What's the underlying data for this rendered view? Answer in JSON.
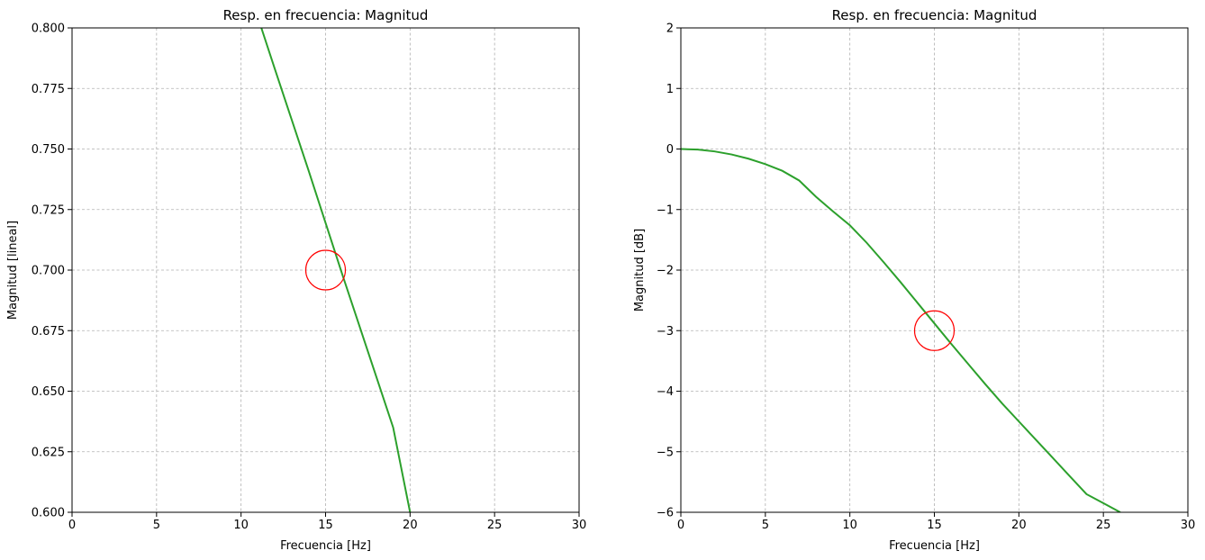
{
  "chart_data": [
    {
      "type": "line",
      "title": "Resp. en frecuencia: Magnitud",
      "xlabel": "Frecuencia [Hz]",
      "ylabel": "Magnitud [lineal]",
      "xlim": [
        0,
        30
      ],
      "ylim": [
        0.6,
        0.8
      ],
      "x_ticks": [
        0,
        5,
        10,
        15,
        20,
        25,
        30
      ],
      "x_tick_labels": [
        "0",
        "5",
        "10",
        "15",
        "20",
        "25",
        "30"
      ],
      "y_ticks": [
        0.6,
        0.625,
        0.65,
        0.675,
        0.7,
        0.725,
        0.75,
        0.775,
        0.8
      ],
      "y_tick_labels": [
        "0.600",
        "0.625",
        "0.650",
        "0.675",
        "0.700",
        "0.725",
        "0.750",
        "0.775",
        "0.800"
      ],
      "grid": true,
      "series": [
        {
          "color": "#2ca02c",
          "x": [
            11.2,
            12,
            13,
            14,
            15,
            16,
            17,
            18,
            19,
            20
          ],
          "y": [
            0.8,
            0.783,
            0.762,
            0.741,
            0.7195,
            0.698,
            0.677,
            0.656,
            0.635,
            0.6
          ]
        }
      ],
      "marker": {
        "x": 15,
        "y": 0.7,
        "style": "circle",
        "color": "#ff0000"
      }
    },
    {
      "type": "line",
      "title": "Resp. en frecuencia: Magnitud",
      "xlabel": "Frecuencia [Hz]",
      "ylabel": "Magnitud [dB]",
      "xlim": [
        0,
        30
      ],
      "ylim": [
        -6,
        2
      ],
      "x_ticks": [
        0,
        5,
        10,
        15,
        20,
        25,
        30
      ],
      "x_tick_labels": [
        "0",
        "5",
        "10",
        "15",
        "20",
        "25",
        "30"
      ],
      "y_ticks": [
        -6,
        -5,
        -4,
        -3,
        -2,
        -1,
        0,
        1,
        2
      ],
      "y_tick_labels": [
        "−6",
        "−5",
        "−4",
        "−3",
        "−2",
        "−1",
        "0",
        "1",
        "2"
      ],
      "grid": true,
      "series": [
        {
          "color": "#2ca02c",
          "x": [
            0,
            1,
            2,
            3,
            4,
            5,
            6,
            7,
            8,
            9,
            10,
            11,
            12,
            13,
            14,
            15,
            16,
            17,
            18,
            19,
            20,
            21,
            22,
            23,
            24,
            25,
            26
          ],
          "y": [
            0,
            -0.01,
            -0.04,
            -0.09,
            -0.16,
            -0.25,
            -0.36,
            -0.52,
            -0.79,
            -1.03,
            -1.26,
            -1.55,
            -1.87,
            -2.2,
            -2.54,
            -2.88,
            -3.22,
            -3.55,
            -3.88,
            -4.2,
            -4.5,
            -4.8,
            -5.1,
            -5.4,
            -5.7,
            -5.85,
            -6.0
          ]
        }
      ],
      "marker": {
        "x": 15,
        "y": -3,
        "style": "circle",
        "color": "#ff0000"
      }
    }
  ]
}
